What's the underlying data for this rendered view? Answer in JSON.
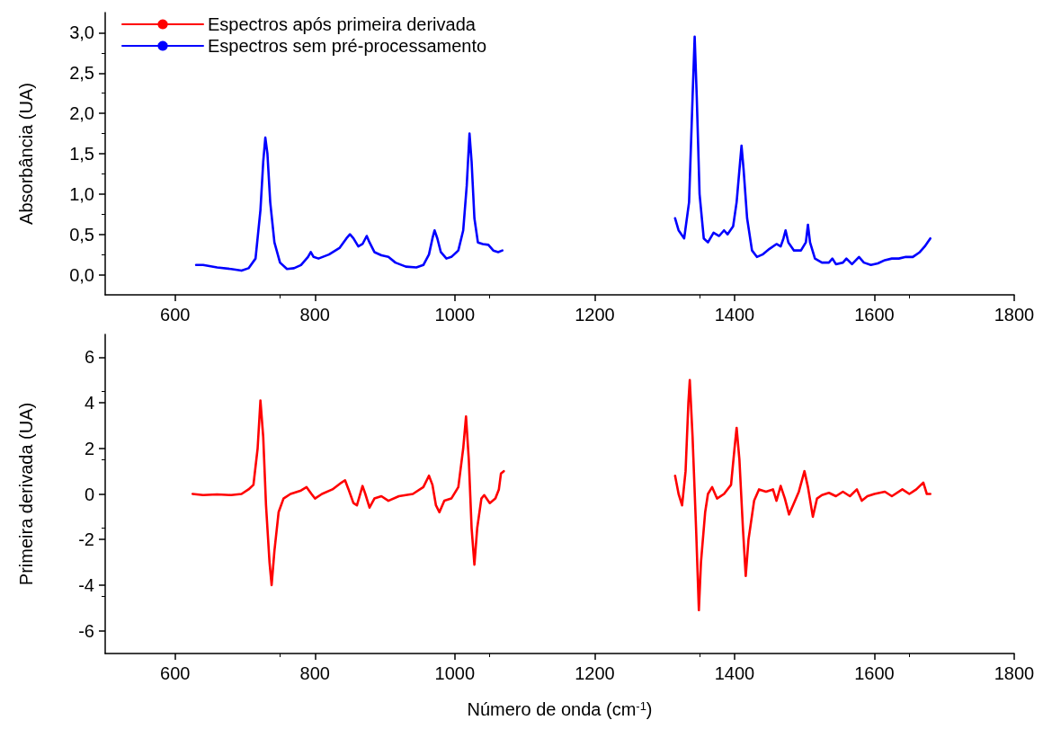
{
  "chart_data": [
    {
      "type": "line",
      "ylabel": "Absorbância (UA)",
      "xlim": [
        500,
        1800
      ],
      "xticks": [
        600,
        800,
        1000,
        1200,
        1400,
        1600,
        1800
      ],
      "ylim": [
        -0.25,
        3.25
      ],
      "yticks": [
        {
          "value": 0,
          "label": "0,0"
        },
        {
          "value": 0.5,
          "label": "0,5"
        },
        {
          "value": 1,
          "label": "1,0"
        },
        {
          "value": 1.5,
          "label": "1,5"
        },
        {
          "value": 2,
          "label": "2,0"
        },
        {
          "value": 2.5,
          "label": "2,5"
        },
        {
          "value": 3,
          "label": "3,0"
        }
      ],
      "grid": false,
      "legend": "top left",
      "marker": "none",
      "line_style": "solid",
      "series": [
        {
          "name": "Espectros sem pré-processamento",
          "color": "#0000ff",
          "x": [
            630,
            640,
            660,
            680,
            695,
            705,
            715,
            722,
            726,
            729,
            732,
            736,
            742,
            750,
            760,
            770,
            780,
            790,
            794,
            798,
            805,
            820,
            835,
            845,
            850,
            855,
            862,
            868,
            874,
            878,
            885,
            895,
            905,
            915,
            930,
            945,
            955,
            963,
            968,
            971,
            975,
            980,
            988,
            995,
            1005,
            1012,
            1017,
            1021,
            1024,
            1028,
            1033,
            1040,
            1048,
            1055,
            1062,
            1068,
            1200,
            1315,
            1320,
            1328,
            1335,
            1340,
            1343,
            1346,
            1350,
            1356,
            1362,
            1370,
            1378,
            1385,
            1390,
            1398,
            1403,
            1408,
            1410,
            1413,
            1418,
            1425,
            1432,
            1440,
            1450,
            1460,
            1466,
            1470,
            1473,
            1477,
            1485,
            1495,
            1502,
            1505,
            1508,
            1515,
            1525,
            1535,
            1540,
            1545,
            1555,
            1560,
            1568,
            1578,
            1585,
            1595,
            1605,
            1615,
            1625,
            1635,
            1645,
            1655,
            1665,
            1672,
            1680
          ],
          "values": [
            0.12,
            0.12,
            0.09,
            0.07,
            0.05,
            0.08,
            0.2,
            0.8,
            1.4,
            1.7,
            1.5,
            0.9,
            0.4,
            0.15,
            0.07,
            0.08,
            0.12,
            0.22,
            0.28,
            0.22,
            0.2,
            0.25,
            0.33,
            0.45,
            0.5,
            0.45,
            0.35,
            0.38,
            0.48,
            0.4,
            0.28,
            0.24,
            0.22,
            0.15,
            0.1,
            0.09,
            0.12,
            0.25,
            0.45,
            0.55,
            0.45,
            0.28,
            0.2,
            0.22,
            0.3,
            0.55,
            1.1,
            1.75,
            1.4,
            0.7,
            0.4,
            0.38,
            0.37,
            0.3,
            0.28,
            0.3,
            null,
            0.7,
            0.55,
            0.45,
            0.9,
            2.2,
            2.95,
            2.2,
            1.0,
            0.45,
            0.4,
            0.52,
            0.48,
            0.55,
            0.5,
            0.6,
            0.9,
            1.4,
            1.6,
            1.3,
            0.7,
            0.3,
            0.22,
            0.25,
            0.32,
            0.38,
            0.35,
            0.45,
            0.55,
            0.4,
            0.3,
            0.3,
            0.4,
            0.62,
            0.4,
            0.2,
            0.15,
            0.15,
            0.2,
            0.13,
            0.15,
            0.2,
            0.13,
            0.22,
            0.15,
            0.12,
            0.14,
            0.18,
            0.2,
            0.2,
            0.22,
            0.22,
            0.28,
            0.35,
            0.45
          ]
        }
      ]
    },
    {
      "type": "line",
      "xlabel": "Número de onda (cm$^{-1}$)",
      "ylabel": "Primeira derivada (UA)",
      "xlim": [
        500,
        1800
      ],
      "xticks": [
        600,
        800,
        1000,
        1200,
        1400,
        1600,
        1800
      ],
      "ylim": [
        -7,
        7
      ],
      "yticks": [
        -6,
        -4,
        -2,
        0,
        2,
        4,
        6
      ],
      "grid": false,
      "legend": "top left",
      "marker": "none",
      "line_style": "solid",
      "series": [
        {
          "name": "Espectros após primeira derivada",
          "color": "#ff0000",
          "x": [
            625,
            640,
            660,
            680,
            695,
            705,
            712,
            718,
            722,
            726,
            730,
            735,
            738,
            742,
            748,
            755,
            765,
            780,
            788,
            795,
            800,
            810,
            825,
            838,
            843,
            848,
            855,
            860,
            868,
            872,
            878,
            885,
            895,
            905,
            920,
            940,
            955,
            963,
            968,
            973,
            978,
            985,
            995,
            1005,
            1012,
            1016,
            1020,
            1024,
            1028,
            1032,
            1038,
            1042,
            1050,
            1058,
            1063,
            1066,
            1070,
            1200,
            1315,
            1320,
            1325,
            1330,
            1334,
            1336,
            1340,
            1345,
            1349,
            1352,
            1358,
            1362,
            1368,
            1375,
            1385,
            1395,
            1400,
            1403,
            1407,
            1412,
            1416,
            1420,
            1428,
            1435,
            1445,
            1455,
            1460,
            1466,
            1472,
            1478,
            1485,
            1492,
            1500,
            1505,
            1512,
            1518,
            1525,
            1535,
            1545,
            1555,
            1565,
            1575,
            1582,
            1590,
            1600,
            1615,
            1625,
            1640,
            1650,
            1660,
            1670,
            1675,
            1680
          ],
          "values": [
            0.0,
            -0.05,
            -0.02,
            -0.05,
            0.0,
            0.2,
            0.4,
            2.0,
            4.1,
            2.5,
            -0.5,
            -3.0,
            -4.0,
            -2.5,
            -0.8,
            -0.2,
            0.0,
            0.15,
            0.3,
            0.0,
            -0.2,
            0.0,
            0.2,
            0.5,
            0.6,
            0.2,
            -0.4,
            -0.5,
            0.35,
            0.0,
            -0.6,
            -0.2,
            -0.1,
            -0.3,
            -0.1,
            0.0,
            0.3,
            0.8,
            0.4,
            -0.5,
            -0.8,
            -0.3,
            -0.2,
            0.3,
            2.0,
            3.4,
            1.5,
            -1.5,
            -3.1,
            -1.5,
            -0.2,
            -0.05,
            -0.4,
            -0.2,
            0.2,
            0.9,
            1.0,
            null,
            0.8,
            0.0,
            -0.5,
            1.0,
            4.0,
            5.0,
            2.5,
            -1.5,
            -5.1,
            -3.0,
            -0.8,
            0.0,
            0.3,
            -0.2,
            0.0,
            0.4,
            2.0,
            2.9,
            1.5,
            -1.5,
            -3.6,
            -2.0,
            -0.3,
            0.2,
            0.1,
            0.2,
            -0.3,
            0.35,
            -0.2,
            -0.9,
            -0.4,
            0.1,
            1.0,
            0.3,
            -1.0,
            -0.2,
            -0.05,
            0.05,
            -0.1,
            0.1,
            -0.1,
            0.2,
            -0.3,
            -0.1,
            0.0,
            0.1,
            -0.1,
            0.2,
            0.0,
            0.2,
            0.5,
            0.0,
            0.0
          ]
        }
      ]
    }
  ]
}
